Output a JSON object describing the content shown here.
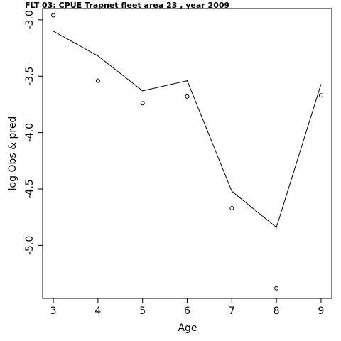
{
  "chart_data": {
    "type": "line",
    "title": "FLT 03:    CPUE       Trapnet   fleet        area        23            , year 2009",
    "xlabel": "Age",
    "ylabel": "log Obs & pred",
    "x": [
      3,
      4,
      5,
      6,
      7,
      8,
      9
    ],
    "x_ticks": [
      "3",
      "4",
      "5",
      "6",
      "7",
      "8",
      "9"
    ],
    "y_ticks": [
      "-3.0",
      "-3.5",
      "-4.0",
      "-4.5",
      "-5.0"
    ],
    "xlim": [
      2.76,
      9.24
    ],
    "ylim": [
      -5.47,
      -2.9
    ],
    "grid": false,
    "series": [
      {
        "style": "line",
        "values": [
          -3.1,
          -3.32,
          -3.63,
          -3.54,
          -4.52,
          -4.84,
          -3.57
        ]
      },
      {
        "style": "points",
        "values": [
          -2.96,
          -3.54,
          -3.74,
          -3.68,
          -4.67,
          -5.38,
          -3.67
        ]
      }
    ]
  }
}
